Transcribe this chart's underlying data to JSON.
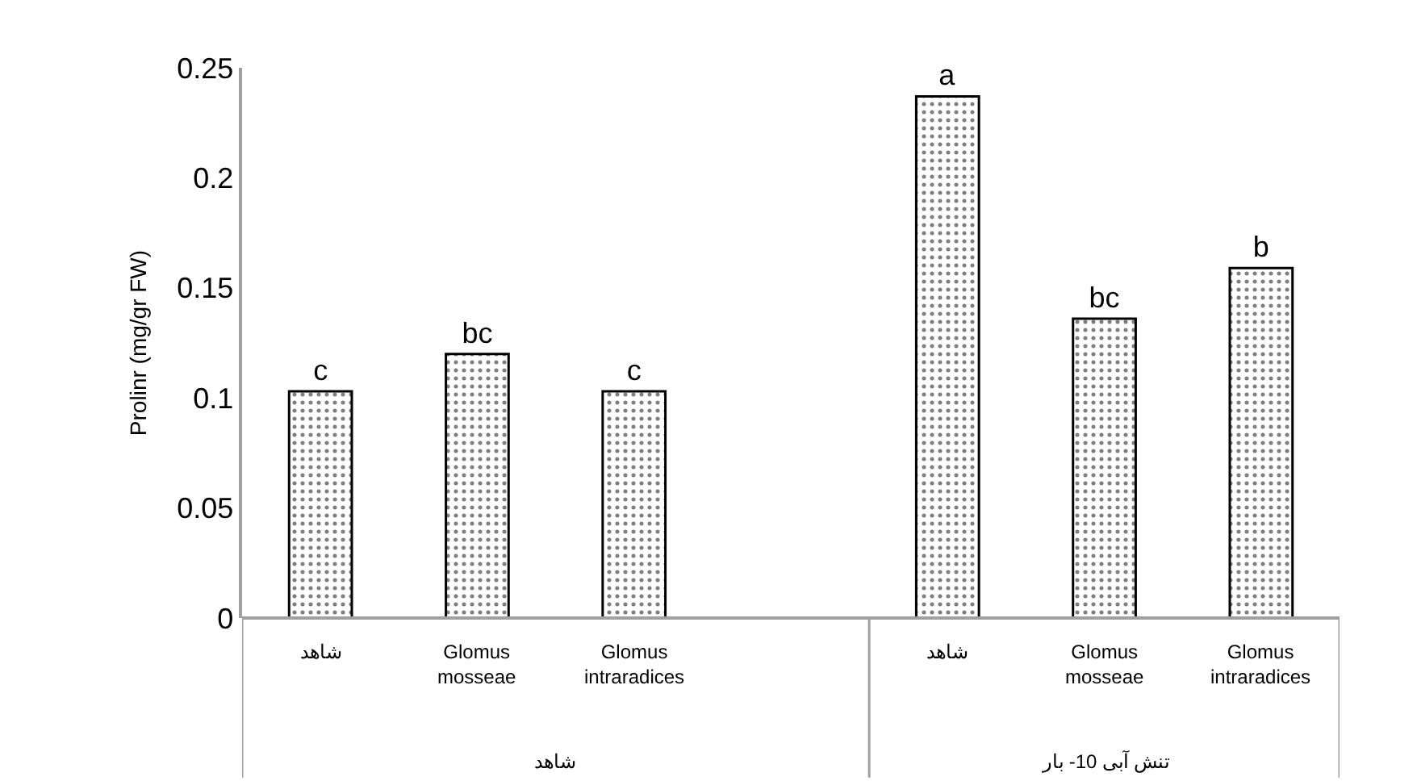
{
  "chart_data": {
    "type": "bar",
    "ylabel": "Prolinr (mg/gr FW)",
    "categories": [
      "شاهد",
      "Glomus mosseae",
      "Glomus intraradices",
      null,
      "شاهد",
      "Glomus mosseae",
      "Glomus intraradices"
    ],
    "values": [
      0.103,
      0.12,
      0.103,
      null,
      0.237,
      0.136,
      0.159
    ],
    "value_labels": [
      "c",
      "bc",
      "c",
      null,
      "a",
      "bc",
      "b"
    ],
    "color": "#000000",
    "ylim": [
      0,
      0.25
    ],
    "yticks": [
      0,
      0.05,
      0.1,
      0.15,
      0.2,
      0.25
    ],
    "annotations": [
      "شاهد",
      "تنش آبی 10- بار"
    ]
  }
}
